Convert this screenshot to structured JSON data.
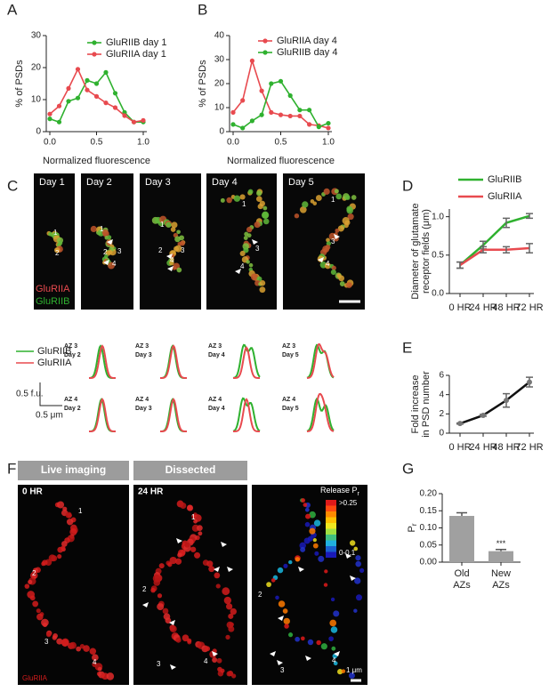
{
  "panel_labels": [
    "A",
    "B",
    "C",
    "D",
    "E",
    "F",
    "G"
  ],
  "chart_data": [
    {
      "type": "line",
      "xlabel": "Normalized fluorescence",
      "ylabel": "% of PSDs",
      "x": [
        0,
        0.1,
        0.2,
        0.3,
        0.4,
        0.5,
        0.6,
        0.7,
        0.8,
        0.9,
        1
      ],
      "series": [
        {
          "name": "GluRIIB  day 1",
          "color": "#2fb12f",
          "values": [
            4,
            3,
            9.5,
            10.5,
            16,
            15,
            18.5,
            12,
            6,
            3,
            3
          ]
        },
        {
          "name": "GluRIIA  day 1",
          "color": "#e84a4f",
          "values": [
            5.5,
            8,
            13.5,
            19.5,
            13,
            11,
            9,
            7.5,
            5,
            3,
            3.5
          ]
        }
      ],
      "xlim": [
        0,
        1
      ],
      "xticks": [
        {
          "value": 0,
          "label": "0.0"
        },
        {
          "value": 0.5,
          "label": "0.5"
        },
        {
          "value": 1,
          "label": "1.0"
        }
      ],
      "ylim": [
        0,
        30
      ],
      "yticks": [
        0,
        10,
        20,
        30
      ]
    },
    {
      "type": "line",
      "xlabel": "Normalized fluorescence",
      "ylabel": "% of PSDs",
      "x": [
        0,
        0.1,
        0.2,
        0.3,
        0.4,
        0.5,
        0.6,
        0.7,
        0.8,
        0.9,
        1
      ],
      "series": [
        {
          "name": "GluRIIA  day 4",
          "color": "#e84a4f",
          "values": [
            8,
            13,
            29.5,
            17,
            8,
            7,
            6.5,
            6.5,
            3,
            2.5,
            1.5
          ]
        },
        {
          "name": "GluRIIB  day 4",
          "color": "#2fb12f",
          "values": [
            3,
            1.5,
            4.5,
            7,
            20,
            21,
            15,
            9,
            9,
            2,
            3.5
          ]
        }
      ],
      "xlim": [
        0,
        1
      ],
      "xticks": [
        {
          "value": 0,
          "label": "0.0"
        },
        {
          "value": 0.5,
          "label": "0.5"
        },
        {
          "value": 1,
          "label": "1.0"
        }
      ],
      "ylim": [
        0,
        40
      ],
      "yticks": [
        0,
        10,
        20,
        30,
        40
      ]
    },
    {
      "type": "line",
      "categories": [
        "0 HR",
        "24 HR",
        "48 HR",
        "72 HR"
      ],
      "ylabel": [
        "Diameter of glutamate",
        "receptor fields (μm)"
      ],
      "series": [
        {
          "name": "GluRIIB",
          "color": "#2fb12f",
          "values": [
            0.37,
            0.63,
            0.92,
            1.01
          ],
          "errors": [
            0.04,
            0.05,
            0.06,
            0.03
          ]
        },
        {
          "name": "GluRIIA",
          "color": "#e84a4f",
          "values": [
            0.37,
            0.57,
            0.57,
            0.59
          ],
          "errors": [
            0.04,
            0.04,
            0.04,
            0.06
          ]
        }
      ],
      "ylim": [
        0,
        1.1
      ],
      "yticks": [
        {
          "value": 0,
          "label": "0.0"
        },
        {
          "value": 0.5,
          "label": "0.5"
        },
        {
          "value": 1,
          "label": "1.0"
        }
      ]
    },
    {
      "type": "line",
      "categories": [
        "0 HR",
        "24 HR",
        "48 HR",
        "72 HR"
      ],
      "ylabel": [
        "Fold increase",
        "in PSD number"
      ],
      "series": [
        {
          "color": "#111111",
          "values": [
            1,
            1.85,
            3.4,
            5.3
          ],
          "errors": [
            0.05,
            0.1,
            0.7,
            0.5
          ]
        }
      ],
      "ylim": [
        0,
        6
      ],
      "yticks": [
        0,
        2,
        4,
        6
      ]
    },
    {
      "type": "bar",
      "categories": [
        [
          "Old",
          "AZs"
        ],
        [
          "New",
          "AZs"
        ]
      ],
      "values": [
        0.135,
        0.032
      ],
      "errors": [
        0.009,
        0.005
      ],
      "color": "#a0a0a0",
      "ylabel": "P",
      "ylabel_subscript": "r",
      "annotations": [
        "***"
      ],
      "ylim": [
        0,
        0.2
      ],
      "yticks": [
        {
          "value": 0,
          "label": "0.00"
        },
        {
          "value": 0.05,
          "label": "0.05"
        },
        {
          "value": 0.1,
          "label": "0.10"
        },
        {
          "value": 0.15,
          "label": "0.15"
        },
        {
          "value": 0.2,
          "label": "0.20"
        }
      ]
    }
  ],
  "panel_c": {
    "days": [
      "Day 1",
      "Day 2",
      "Day 3",
      "Day 4",
      "Day 5"
    ],
    "numbers": [
      [
        "1",
        "2"
      ],
      [
        "1",
        "2",
        "3",
        "4"
      ],
      [
        "1",
        "2",
        "3",
        "4"
      ],
      [
        "1",
        "3",
        "4"
      ],
      [
        "1",
        "3",
        "4"
      ]
    ],
    "channels": [
      "GluRIIA",
      "GluRIIB"
    ],
    "profile_legend": [
      "GluRIIB",
      "GluRIIA"
    ],
    "profiles": [
      [
        "AZ 3",
        "Day 2"
      ],
      [
        "AZ 3",
        "Day 3"
      ],
      [
        "AZ 3",
        "Day 4"
      ],
      [
        "AZ 3",
        "Day 5"
      ],
      [
        "AZ 4",
        "Day 2"
      ],
      [
        "AZ 4",
        "Day 3"
      ],
      [
        "AZ 4",
        "Day 4"
      ],
      [
        "AZ 4",
        "Day 5"
      ]
    ],
    "scale_y": "0.5 f.u.",
    "scale_x": "0.5 μm"
  },
  "panel_f": {
    "headers": [
      "Live imaging",
      "Dissected"
    ],
    "times": [
      "0 HR",
      "24  HR"
    ],
    "numbers": [
      [
        "1",
        "2",
        "3",
        "4"
      ],
      [
        "1",
        "2",
        "3",
        "4"
      ],
      [
        "2",
        "3",
        "4"
      ]
    ],
    "release_label": "Release P",
    "release_subscript": "r",
    "release_high": ">0.25",
    "release_low": "0-0.1",
    "channel": "GluRIIA",
    "scale": "1 μm"
  }
}
